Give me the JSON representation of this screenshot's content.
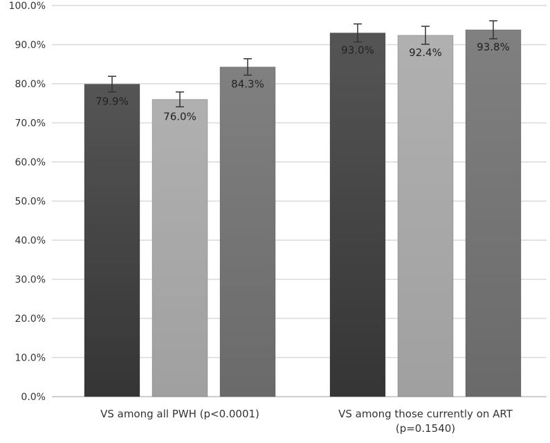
{
  "chart_data": {
    "type": "bar",
    "title": "",
    "xlabel": "",
    "ylabel": "",
    "ylim": [
      0,
      100
    ],
    "y_ticks": [
      "0.0%",
      "10.0%",
      "20.0%",
      "30.0%",
      "40.0%",
      "50.0%",
      "60.0%",
      "70.0%",
      "80.0%",
      "90.0%",
      "100.0%"
    ],
    "grid": true,
    "categories": [
      [
        "VS among all PWH  (p<0.0001)"
      ],
      [
        "VS among those currently on ART",
        "(p=0.1540)"
      ]
    ],
    "series": [
      {
        "name": "series 1",
        "color": "#464646",
        "values": [
          79.9,
          93.0
        ],
        "errors": [
          2.0,
          2.3
        ],
        "labels": [
          "79.9%",
          "93.0%"
        ]
      },
      {
        "name": "series 2",
        "color": "#a9a9a9",
        "values": [
          76.0,
          92.4
        ],
        "errors": [
          1.9,
          2.3
        ],
        "labels": [
          "76.0%",
          "92.4%"
        ]
      },
      {
        "name": "series 3",
        "color": "#747474",
        "values": [
          84.3,
          93.8
        ],
        "errors": [
          2.1,
          2.3
        ],
        "labels": [
          "84.3%",
          "93.8%"
        ]
      }
    ],
    "legend": "none"
  }
}
